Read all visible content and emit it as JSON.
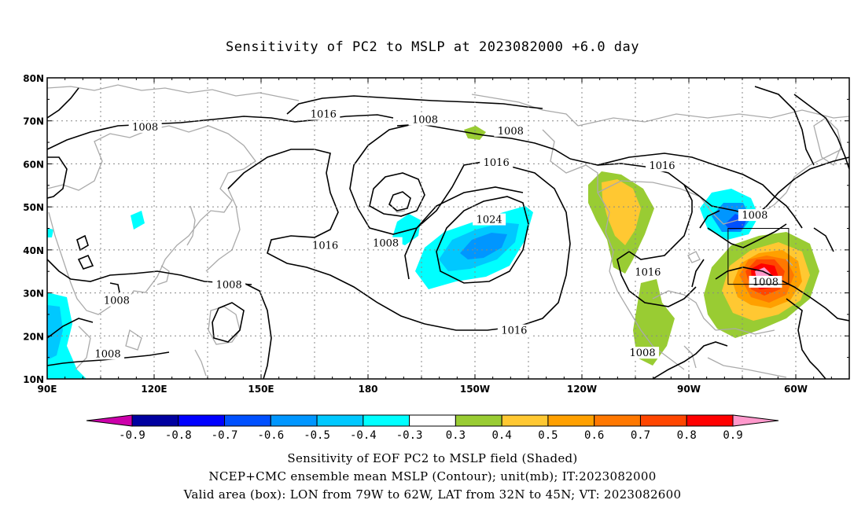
{
  "title": "Sensitivity of PC2 to MSLP at 2023082000 +6.0 day",
  "axes": {
    "lat_labels": [
      "80N",
      "70N",
      "60N",
      "50N",
      "40N",
      "30N",
      "20N",
      "10N"
    ],
    "lon_labels": [
      "90E",
      "120E",
      "150E",
      "180",
      "150W",
      "120W",
      "90W",
      "60W"
    ]
  },
  "map_extent": {
    "lon_min": 90,
    "lon_max": 315,
    "lat_min": 10,
    "lat_max": 80
  },
  "contour_labels": [
    {
      "text": "1008",
      "lon": 117.5,
      "lat": 68.5
    },
    {
      "text": "1016",
      "lon": 167.5,
      "lat": 71.5
    },
    {
      "text": "1008",
      "lon": 196,
      "lat": 70.2
    },
    {
      "text": "1008",
      "lon": 220,
      "lat": 67.6
    },
    {
      "text": "1016",
      "lon": 216,
      "lat": 60.3
    },
    {
      "text": "1024",
      "lon": 214,
      "lat": 47
    },
    {
      "text": "1016",
      "lon": 262.5,
      "lat": 59.5
    },
    {
      "text": "1008",
      "lon": 288.5,
      "lat": 48
    },
    {
      "text": "1016",
      "lon": 168,
      "lat": 41
    },
    {
      "text": "1008",
      "lon": 185,
      "lat": 41.5
    },
    {
      "text": "1016",
      "lon": 258.5,
      "lat": 34.8
    },
    {
      "text": "1008",
      "lon": 291.5,
      "lat": 32.5
    },
    {
      "text": "1008",
      "lon": 109.5,
      "lat": 28.2
    },
    {
      "text": "1008",
      "lon": 141,
      "lat": 31.8
    },
    {
      "text": "1016",
      "lon": 221,
      "lat": 21.2
    },
    {
      "text": "1008",
      "lon": 107,
      "lat": 15.8
    },
    {
      "text": "1008",
      "lon": 257,
      "lat": 16
    }
  ],
  "colorbar": {
    "labels": [
      "-0.9",
      "-0.8",
      "-0.7",
      "-0.6",
      "-0.5",
      "-0.4",
      "-0.3",
      "0.3",
      "0.4",
      "0.5",
      "0.6",
      "0.7",
      "0.8",
      "0.9"
    ],
    "colors": [
      "#0000a0",
      "#0000ff",
      "#0050ff",
      "#0096ff",
      "#00c8ff",
      "#00ffff",
      "#ffffff",
      "#99cc33",
      "#ffc832",
      "#ffa000",
      "#ff7800",
      "#ff4600",
      "#ff0000"
    ],
    "low_end": "#cc00aa",
    "high_end": "#ff99cc"
  },
  "valid_box": {
    "lon_min": 281,
    "lon_max": 298,
    "lat_min": 32,
    "lat_max": 45
  },
  "captions": [
    "Sensitivity of EOF PC2 to MSLP field (Shaded)",
    "NCEP+CMC ensemble mean MSLP (Contour); unit(mb); IT:2023082000",
    "Valid area (box): LON from 79W to 62W, LAT from 32N to 45N; VT: 2023082600"
  ]
}
